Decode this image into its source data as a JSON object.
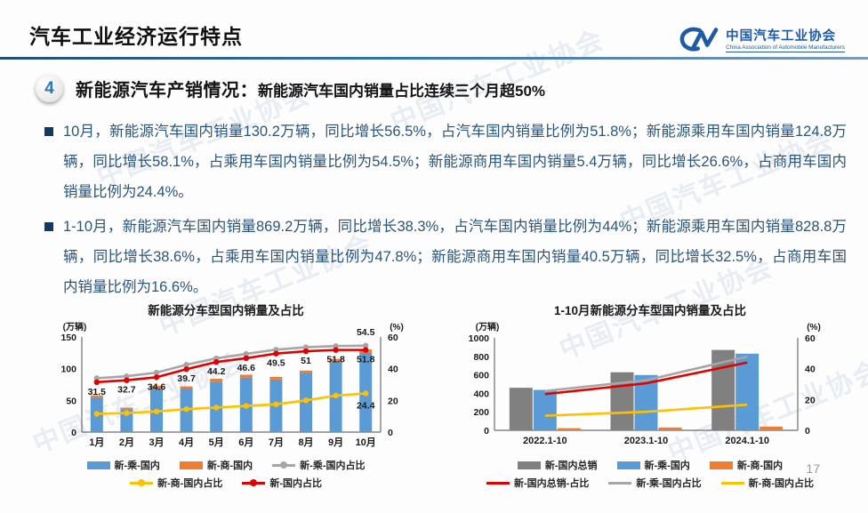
{
  "slide": {
    "title": "汽车工业经济运行特点",
    "logo": {
      "org_cn": "中国汽车工业协会",
      "org_en": "China Association of Automobile Manufacturers"
    },
    "section": {
      "badge": "4",
      "heading": "新能源汽车产销情况：",
      "subheading": "新能源汽车国内销量占比连续三个月超50%"
    },
    "bullets": [
      "10月，新能源汽车国内销量130.2万辆，同比增长56.5%，占汽车国内销量比例为51.8%；新能源乘用车国内销量124.8万辆，同比增长58.1%，占乘用车国内销量比例为54.5%；新能源商用车国内销量5.4万辆，同比增长26.6%，占商用车国内销量比例为24.4%。",
      "1-10月，新能源汽车国内销量869.2万辆，同比增长38.3%，占汽车国内销量比例为44%；新能源乘用车国内销量828.8万辆，同比增长38.6%，占乘用车国内销量比例为47.8%；新能源商用车国内销量40.5万辆，同比增长32.5%，占商用车国内销量比例为16.6%。"
    ],
    "watermark_text": "中国汽车工业协会",
    "page_number": "17"
  },
  "colors": {
    "accent_blue": "#1E5AA8",
    "divider_blue": "#2E74B5",
    "body_text": "#2A557E",
    "bar_blue": "#5B9BD5",
    "bar_orange": "#ED7D31",
    "bar_gray": "#808080",
    "line_red": "#E00000",
    "line_gray": "#A6A6A6",
    "line_yellow": "#FFC000"
  },
  "chart_data": [
    {
      "type": "bar+line combo, stacked bars, dual axis",
      "title": "新能源分车型国内销量及占比",
      "left_axis": {
        "label": "(万辆)",
        "min": 0,
        "max": 150,
        "ticks": [
          0,
          50,
          100,
          150
        ]
      },
      "right_axis": {
        "label": "(%)",
        "min": 0,
        "max": 60,
        "ticks": [
          0,
          20,
          40,
          60
        ]
      },
      "categories": [
        "1月",
        "2月",
        "3月",
        "4月",
        "5月",
        "6月",
        "7月",
        "8月",
        "9月",
        "10月"
      ],
      "bar_series": [
        {
          "name": "新-乘-国内",
          "color": "#5B9BD5",
          "values": [
            55,
            36,
            68.5,
            68,
            79.5,
            86,
            83,
            92.5,
            110,
            124.8
          ]
        },
        {
          "name": "新-商-国内",
          "color": "#ED7D31",
          "values": [
            3,
            2.5,
            4.5,
            4,
            4.5,
            4.5,
            4,
            4.5,
            5.5,
            5.4
          ]
        }
      ],
      "line_series": [
        {
          "name": "新-乘-国内占比",
          "color": "#A6A6A6",
          "axis": "right",
          "values": [
            34,
            35.2,
            37.5,
            42.5,
            46.5,
            49.3,
            52,
            53.5,
            54.3,
            54.5
          ],
          "last_label": "54.5",
          "last_label_dy": -12
        },
        {
          "name": "新-商-国内占比",
          "color": "#FFC000",
          "axis": "right",
          "values": [
            11.5,
            12,
            13,
            14.5,
            15.5,
            16.5,
            17.5,
            20,
            23,
            24.4
          ],
          "last_label": "24.4",
          "last_label_dy": 17
        },
        {
          "name": "新-国内占比",
          "color": "#E00000",
          "axis": "right",
          "values": [
            31.5,
            32.7,
            34.6,
            39.7,
            44.2,
            46.6,
            49.5,
            51,
            51.8,
            51.8
          ],
          "point_labels": true
        }
      ],
      "legend_position": "bottom"
    },
    {
      "type": "bar+line combo, grouped bars, dual axis",
      "title": "1-10月新能源分车型国内销量及占比",
      "left_axis": {
        "label": "(万辆)",
        "min": 0,
        "max": 1000,
        "ticks": [
          0,
          200,
          400,
          600,
          800,
          1000
        ]
      },
      "right_axis": {
        "label": "(%)",
        "min": 0,
        "max": 60,
        "ticks": [
          0,
          20,
          40,
          60
        ]
      },
      "categories": [
        "2022.1-10",
        "2023.1-10",
        "2024.1-10"
      ],
      "bar_series": [
        {
          "name": "新-国内总销",
          "color": "#808080",
          "values": [
            460,
            628,
            869.2
          ]
        },
        {
          "name": "新-乘-国内",
          "color": "#5B9BD5",
          "values": [
            437,
            598,
            828.8
          ]
        },
        {
          "name": "新-商-国内",
          "color": "#ED7D31",
          "values": [
            23,
            30.5,
            40.5
          ]
        }
      ],
      "line_series": [
        {
          "name": "新-乘-国内占比",
          "color": "#A6A6A6",
          "axis": "right",
          "values": [
            25.5,
            32.5,
            47.8
          ]
        },
        {
          "name": "新-商-国内占比",
          "color": "#FFC000",
          "axis": "right",
          "values": [
            9.5,
            12,
            16.6
          ]
        },
        {
          "name": "新-国内总销-占比",
          "color": "#E00000",
          "axis": "right",
          "values": [
            23.5,
            30.5,
            44
          ]
        }
      ],
      "legend_position": "bottom"
    }
  ]
}
